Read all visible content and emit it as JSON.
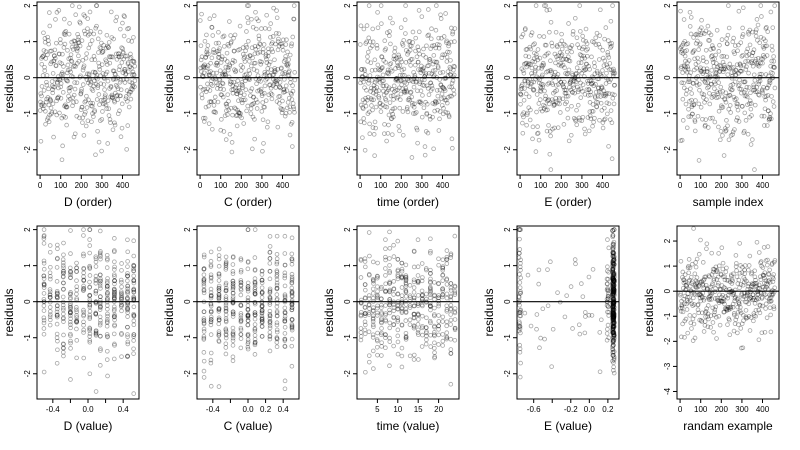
{
  "chart_data": [
    {
      "type": "scatter",
      "xlabel": "D (order)",
      "ylabel": "residuals",
      "xlim": [
        -15,
        480
      ],
      "ylim": [
        -2.7,
        2.1
      ],
      "xticks": [
        0,
        100,
        200,
        300,
        400
      ],
      "yticks": [
        -2,
        -1,
        0,
        1,
        2
      ],
      "reference_line_y": 0,
      "points": {
        "n": 450,
        "x_range": [
          1,
          460
        ],
        "generator": {
          "kind": "order",
          "seed": 11
        }
      }
    },
    {
      "type": "scatter",
      "xlabel": "C (order)",
      "ylabel": "residuals",
      "xlim": [
        -15,
        480
      ],
      "ylim": [
        -2.7,
        2.1
      ],
      "xticks": [
        0,
        100,
        200,
        300,
        400
      ],
      "yticks": [
        -2,
        -1,
        0,
        1,
        2
      ],
      "reference_line_y": 0,
      "points": {
        "n": 450,
        "x_range": [
          1,
          460
        ],
        "generator": {
          "kind": "order",
          "seed": 23
        }
      }
    },
    {
      "type": "scatter",
      "xlabel": "time (order)",
      "ylabel": "residuals",
      "xlim": [
        -15,
        480
      ],
      "ylim": [
        -2.7,
        2.1
      ],
      "xticks": [
        0,
        100,
        200,
        300,
        400
      ],
      "yticks": [
        -2,
        -1,
        0,
        1,
        2
      ],
      "reference_line_y": 0,
      "points": {
        "n": 450,
        "x_range": [
          1,
          460
        ],
        "generator": {
          "kind": "order",
          "seed": 37
        }
      }
    },
    {
      "type": "scatter",
      "xlabel": "E (order)",
      "ylabel": "residuals",
      "xlim": [
        -15,
        480
      ],
      "ylim": [
        -2.7,
        2.1
      ],
      "xticks": [
        0,
        100,
        200,
        300,
        400
      ],
      "yticks": [
        -2,
        -1,
        0,
        1,
        2
      ],
      "reference_line_y": 0,
      "points": {
        "n": 450,
        "x_range": [
          1,
          460
        ],
        "generator": {
          "kind": "order",
          "seed": 41
        }
      }
    },
    {
      "type": "scatter",
      "xlabel": "sample index",
      "ylabel": "residuals",
      "xlim": [
        -15,
        480
      ],
      "ylim": [
        -2.7,
        2.1
      ],
      "xticks": [
        0,
        100,
        200,
        300,
        400
      ],
      "yticks": [
        -2,
        -1,
        0,
        1,
        2
      ],
      "reference_line_y": 0,
      "points": {
        "n": 450,
        "x_range": [
          1,
          460
        ],
        "generator": {
          "kind": "order",
          "seed": 53
        }
      }
    },
    {
      "type": "scatter",
      "xlabel": "D (value)",
      "ylabel": "residuals",
      "xlim": [
        -0.58,
        0.58
      ],
      "ylim": [
        -2.7,
        2.1
      ],
      "xticks": [
        -0.4,
        -0.2,
        0.0,
        0.2,
        0.4
      ],
      "xtick_labels": [
        "-0.4",
        "",
        "0.0",
        "",
        "0.4"
      ],
      "yticks": [
        -2,
        -1,
        0,
        1,
        2
      ],
      "reference_line_y": 0,
      "points": {
        "n": 450,
        "generator": {
          "kind": "discrete",
          "seed": 61,
          "levels": [
            -0.5,
            -0.43,
            -0.35,
            -0.28,
            -0.2,
            -0.13,
            -0.05,
            0.02,
            0.09,
            0.14,
            0.22,
            0.3,
            0.38,
            0.45,
            0.52
          ]
        }
      }
    },
    {
      "type": "scatter",
      "xlabel": "C (value)",
      "ylabel": "residuals",
      "xlim": [
        -0.58,
        0.58
      ],
      "ylim": [
        -2.7,
        2.1
      ],
      "xticks": [
        -0.4,
        -0.2,
        0.0,
        0.2,
        0.4
      ],
      "xtick_labels": [
        "-0.4",
        "",
        "0.0",
        "0.2",
        "0.4"
      ],
      "yticks": [
        -2,
        -1,
        0,
        1,
        2
      ],
      "reference_line_y": 0,
      "points": {
        "n": 450,
        "generator": {
          "kind": "discrete",
          "seed": 71,
          "levels": [
            -0.5,
            -0.42,
            -0.33,
            -0.25,
            -0.17,
            -0.08,
            0.0,
            0.08,
            0.16,
            0.25,
            0.33,
            0.42,
            0.5
          ]
        }
      }
    },
    {
      "type": "scatter",
      "xlabel": "time (value)",
      "ylabel": "residuals",
      "xlim": [
        0,
        25
      ],
      "ylim": [
        -2.7,
        2.1
      ],
      "xticks": [
        5,
        10,
        15,
        20
      ],
      "yticks": [
        -2,
        -1,
        0,
        1,
        2
      ],
      "reference_line_y": 0,
      "points": {
        "n": 450,
        "generator": {
          "kind": "discrete",
          "seed": 83,
          "levels": [
            1,
            2,
            3,
            4,
            5,
            6,
            7,
            8,
            9,
            10,
            11,
            12,
            13,
            14,
            15,
            16,
            17,
            18,
            19,
            20,
            21,
            22,
            23,
            24
          ]
        }
      }
    },
    {
      "type": "scatter",
      "xlabel": "E (value)",
      "ylabel": "residuals",
      "xlim": [
        -0.78,
        0.32
      ],
      "ylim": [
        -2.7,
        2.1
      ],
      "xticks": [
        -0.6,
        -0.4,
        -0.2,
        0.0,
        0.2
      ],
      "xtick_labels": [
        "-0.6",
        "",
        "-0.2",
        "0.0",
        "0.2"
      ],
      "yticks": [
        -2,
        -1,
        0,
        1,
        2
      ],
      "reference_line_y": 0,
      "points": {
        "n": 450,
        "generator": {
          "kind": "clustered",
          "seed": 97
        }
      }
    },
    {
      "type": "scatter",
      "xlabel": "randam example",
      "ylabel": "residuals",
      "xlim": [
        -15,
        480
      ],
      "ylim": [
        -4.3,
        2.6
      ],
      "xticks": [
        0,
        100,
        200,
        300,
        400
      ],
      "yticks": [
        -4,
        -3,
        -2,
        -1,
        0,
        1,
        2
      ],
      "reference_line_y": 0,
      "points": {
        "n": 450,
        "x_range": [
          1,
          460
        ],
        "generator": {
          "kind": "order",
          "seed": 107
        }
      }
    }
  ]
}
